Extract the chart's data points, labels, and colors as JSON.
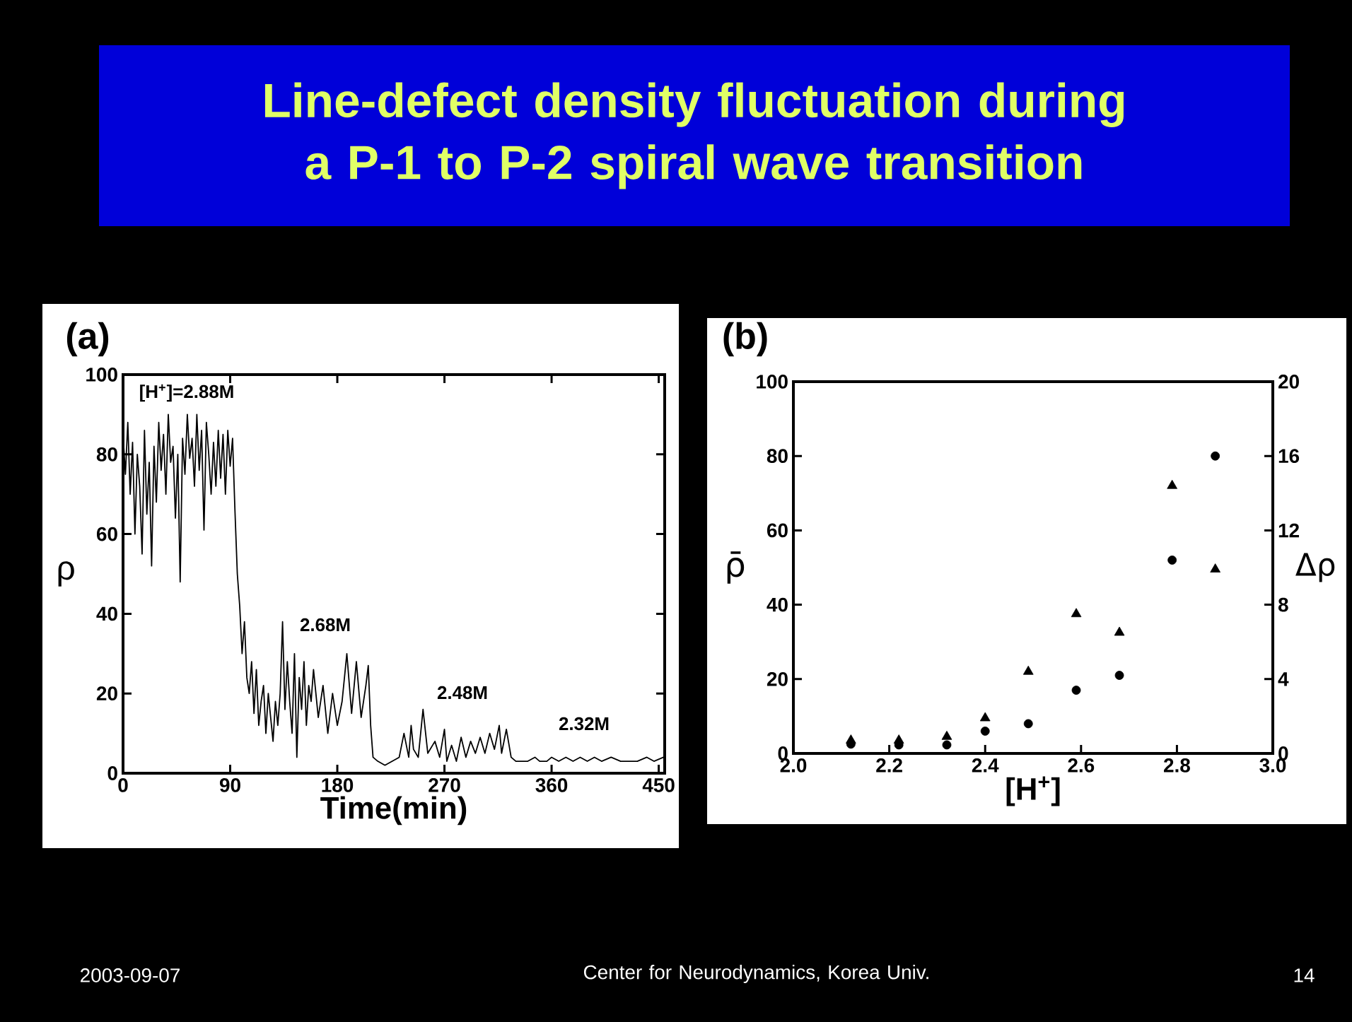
{
  "chart_data": [
    {
      "type": "line",
      "title": "Line-defect density fluctuation during a P-1 to P-2 spiral wave transition",
      "xlabel": "Time(min)",
      "ylabel": "ρ",
      "color": "#000000",
      "x": [
        0,
        2,
        4,
        6,
        8,
        10,
        12,
        14,
        16,
        18,
        20,
        22,
        24,
        26,
        28,
        30,
        32,
        34,
        36,
        38,
        40,
        42,
        44,
        46,
        48,
        50,
        52,
        54,
        56,
        58,
        60,
        62,
        64,
        66,
        68,
        70,
        72,
        74,
        76,
        78,
        80,
        82,
        84,
        86,
        88,
        90,
        92,
        94,
        96,
        98,
        100,
        102,
        104,
        106,
        108,
        110,
        112,
        114,
        116,
        118,
        120,
        122,
        124,
        126,
        128,
        130,
        132,
        134,
        136,
        138,
        140,
        142,
        144,
        146,
        148,
        150,
        152,
        154,
        156,
        158,
        160,
        164,
        168,
        172,
        176,
        180,
        184,
        188,
        192,
        196,
        200,
        204,
        206,
        208,
        210,
        214,
        220,
        226,
        232,
        236,
        240,
        242,
        244,
        248,
        252,
        256,
        258,
        262,
        266,
        270,
        272,
        276,
        280,
        284,
        288,
        292,
        296,
        300,
        304,
        308,
        312,
        316,
        318,
        322,
        326,
        330,
        334,
        340,
        346,
        350,
        356,
        360,
        366,
        372,
        378,
        384,
        390,
        396,
        402,
        410,
        418,
        424,
        432,
        440,
        446,
        454
      ],
      "values": [
        85,
        75,
        88,
        70,
        83,
        60,
        80,
        72,
        55,
        86,
        65,
        78,
        52,
        82,
        68,
        88,
        76,
        85,
        70,
        90,
        78,
        82,
        64,
        80,
        48,
        84,
        75,
        90,
        79,
        84,
        72,
        90,
        76,
        86,
        61,
        88,
        80,
        70,
        83,
        72,
        86,
        74,
        85,
        70,
        86,
        77,
        84,
        66,
        50,
        42,
        30,
        38,
        24,
        20,
        28,
        15,
        26,
        12,
        18,
        22,
        10,
        20,
        14,
        8,
        18,
        12,
        20,
        38,
        16,
        28,
        18,
        10,
        30,
        4,
        24,
        16,
        28,
        12,
        22,
        18,
        26,
        14,
        22,
        10,
        20,
        12,
        18,
        30,
        15,
        28,
        14,
        22,
        27,
        12,
        4,
        3,
        2,
        3,
        4,
        10,
        4,
        12,
        6,
        4,
        16,
        5,
        6,
        8,
        4,
        11,
        3,
        7,
        3,
        9,
        4,
        8,
        5,
        9,
        5,
        10,
        6,
        12,
        5,
        11,
        4,
        3,
        3,
        3,
        4,
        3,
        3,
        4,
        3,
        4,
        3,
        4,
        3,
        4,
        3,
        4,
        3,
        3,
        3,
        4,
        3,
        4
      ],
      "xlim": [
        0,
        455
      ],
      "ylim": [
        0,
        100
      ],
      "xticks": [
        0,
        90,
        180,
        270,
        360,
        450
      ],
      "yticks": [
        0,
        20,
        40,
        60,
        80,
        100
      ],
      "annotations": [
        "[H$^{+}$]=2.88M",
        "2.68M",
        "2.48M",
        "2.32M",
        "(a)",
        "2003-09-07",
        "Center for Neurodynamics, Korea Univ.",
        "14"
      ]
    },
    {
      "type": "scatter",
      "title": "(b)",
      "xlabel": "[H$^{+}$]",
      "ylabel": "ρ̄",
      "y2label": "Δρ",
      "xlim": [
        2.0,
        3.0
      ],
      "ylim": [
        0,
        100
      ],
      "y2lim": [
        0,
        20
      ],
      "xticks": [
        {
          "value": 2.0,
          "label": "2.0"
        },
        2.2,
        2.4,
        2.6,
        2.8,
        {
          "value": 3.0,
          "label": "3.0"
        }
      ],
      "yticks": [
        0,
        20,
        40,
        60,
        80,
        100
      ],
      "y2ticks": [
        0,
        4,
        8,
        12,
        16,
        20
      ],
      "series": [
        {
          "color": "#000000",
          "marker": "circle",
          "x": [
            2.12,
            2.22,
            2.32,
            2.4,
            2.49,
            2.59,
            2.68,
            2.79,
            2.88
          ],
          "values": [
            2.5,
            2.3,
            2.3,
            6,
            8,
            17,
            21,
            52,
            80
          ]
        },
        {
          "color": "#000000",
          "marker": "triangle",
          "axis": "y2",
          "x": [
            2.12,
            2.22,
            2.32,
            2.4,
            2.49,
            2.59,
            2.68,
            2.79,
            2.88
          ],
          "values": [
            0.7,
            0.7,
            0.9,
            1.9,
            4.4,
            7.5,
            6.5,
            14.4,
            9.9
          ]
        }
      ]
    }
  ]
}
